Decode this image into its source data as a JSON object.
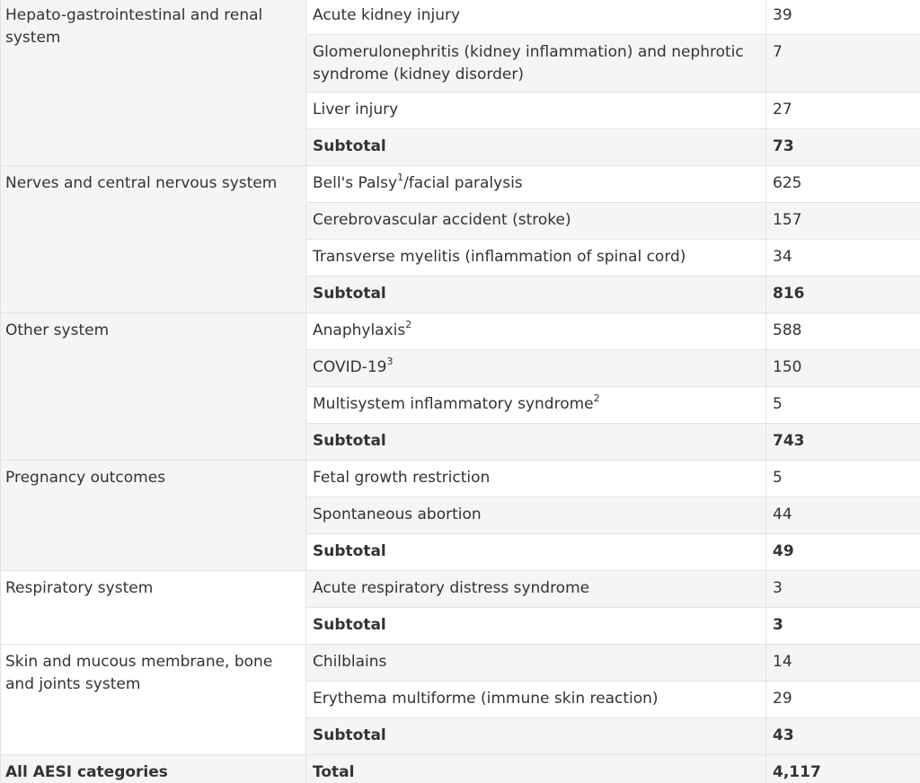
{
  "groups": [
    {
      "category": "Hepato-gastrointestinal and renal system",
      "rows": [
        {
          "event": "Acute kidney injury",
          "sup": "",
          "count": "39"
        },
        {
          "event": "Glomerulonephritis (kidney inflammation) and nephrotic syndrome (kidney disorder)",
          "sup": "",
          "count": "7"
        },
        {
          "event": "Liver injury",
          "sup": "",
          "count": "27"
        }
      ],
      "subtotal_label": "Subtotal",
      "subtotal": "73"
    },
    {
      "category": "Nerves and central nervous system",
      "rows": [
        {
          "event": "Bell's Palsy",
          "sup": "1",
          "after": "/facial paralysis",
          "count": "625"
        },
        {
          "event": "Cerebrovascular accident (stroke)",
          "sup": "",
          "count": "157"
        },
        {
          "event": "Transverse myelitis (inflammation of spinal cord)",
          "sup": "",
          "count": "34"
        }
      ],
      "subtotal_label": "Subtotal",
      "subtotal": "816"
    },
    {
      "category": "Other system",
      "rows": [
        {
          "event": "Anaphylaxis",
          "sup": "2",
          "count": "588"
        },
        {
          "event": "COVID-19",
          "sup": "3",
          "count": "150"
        },
        {
          "event": "Multisystem inflammatory syndrome",
          "sup": "2",
          "count": "5"
        }
      ],
      "subtotal_label": "Subtotal",
      "subtotal": "743"
    },
    {
      "category": "Pregnancy outcomes",
      "rows": [
        {
          "event": "Fetal growth restriction",
          "sup": "",
          "count": "5"
        },
        {
          "event": "Spontaneous abortion",
          "sup": "",
          "count": "44"
        }
      ],
      "subtotal_label": "Subtotal",
      "subtotal": "49"
    },
    {
      "category": "Respiratory system",
      "rows": [
        {
          "event": "Acute respiratory distress syndrome",
          "sup": "",
          "count": "3"
        }
      ],
      "subtotal_label": "Subtotal",
      "subtotal": "3"
    },
    {
      "category": "Skin and mucous membrane, bone and joints system",
      "rows": [
        {
          "event": "Chilblains",
          "sup": "",
          "count": "14"
        },
        {
          "event": "Erythema multiforme (immune skin reaction)",
          "sup": "",
          "count": "29"
        }
      ],
      "subtotal_label": "Subtotal",
      "subtotal": "43"
    }
  ],
  "total": {
    "category": "All AESI categories",
    "label": "Total",
    "value": "4,117"
  }
}
